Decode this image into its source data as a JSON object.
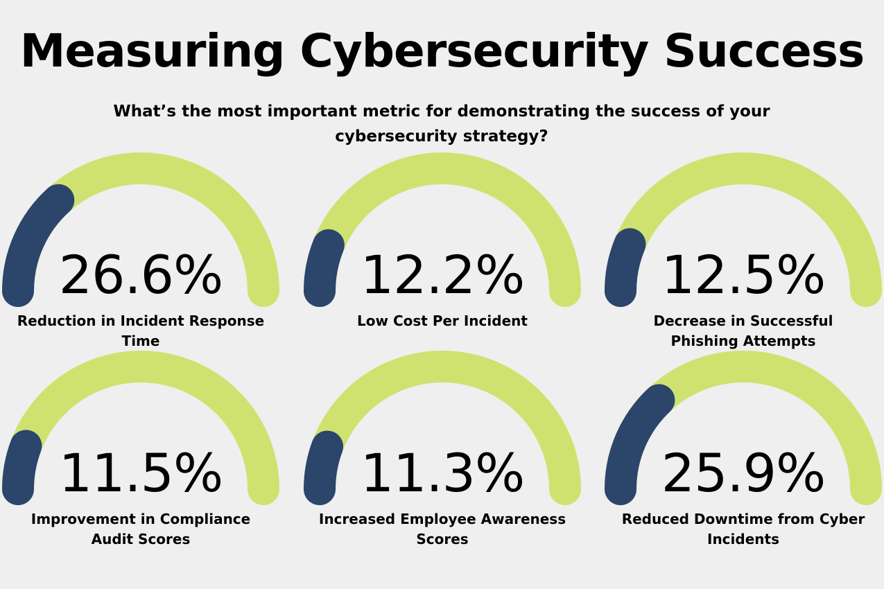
{
  "title": "Measuring Cybersecurity Success",
  "subtitle": "What’s the most important metric for demonstrating the success of your cybersecurity strategy?",
  "colors": {
    "background": "#efefef",
    "track": "#cfe270",
    "fill": "#2b456b",
    "text": "#000000"
  },
  "chart_data": {
    "type": "gauge",
    "unit": "%",
    "max": 100,
    "items": [
      {
        "label": "Reduction in Incident Response Time",
        "value": 26.6,
        "display": "26.6%"
      },
      {
        "label": "Low Cost Per Incident",
        "value": 12.2,
        "display": "12.2%"
      },
      {
        "label": "Decrease in Successful Phishing Attempts",
        "value": 12.5,
        "display": "12.5%"
      },
      {
        "label": "Improvement in Compliance Audit Scores",
        "value": 11.5,
        "display": "11.5%"
      },
      {
        "label": "Increased Employee Awareness Scores",
        "value": 11.3,
        "display": "11.3%"
      },
      {
        "label": "Reduced Downtime from Cyber Incidents",
        "value": 25.9,
        "display": "25.9%"
      }
    ]
  }
}
